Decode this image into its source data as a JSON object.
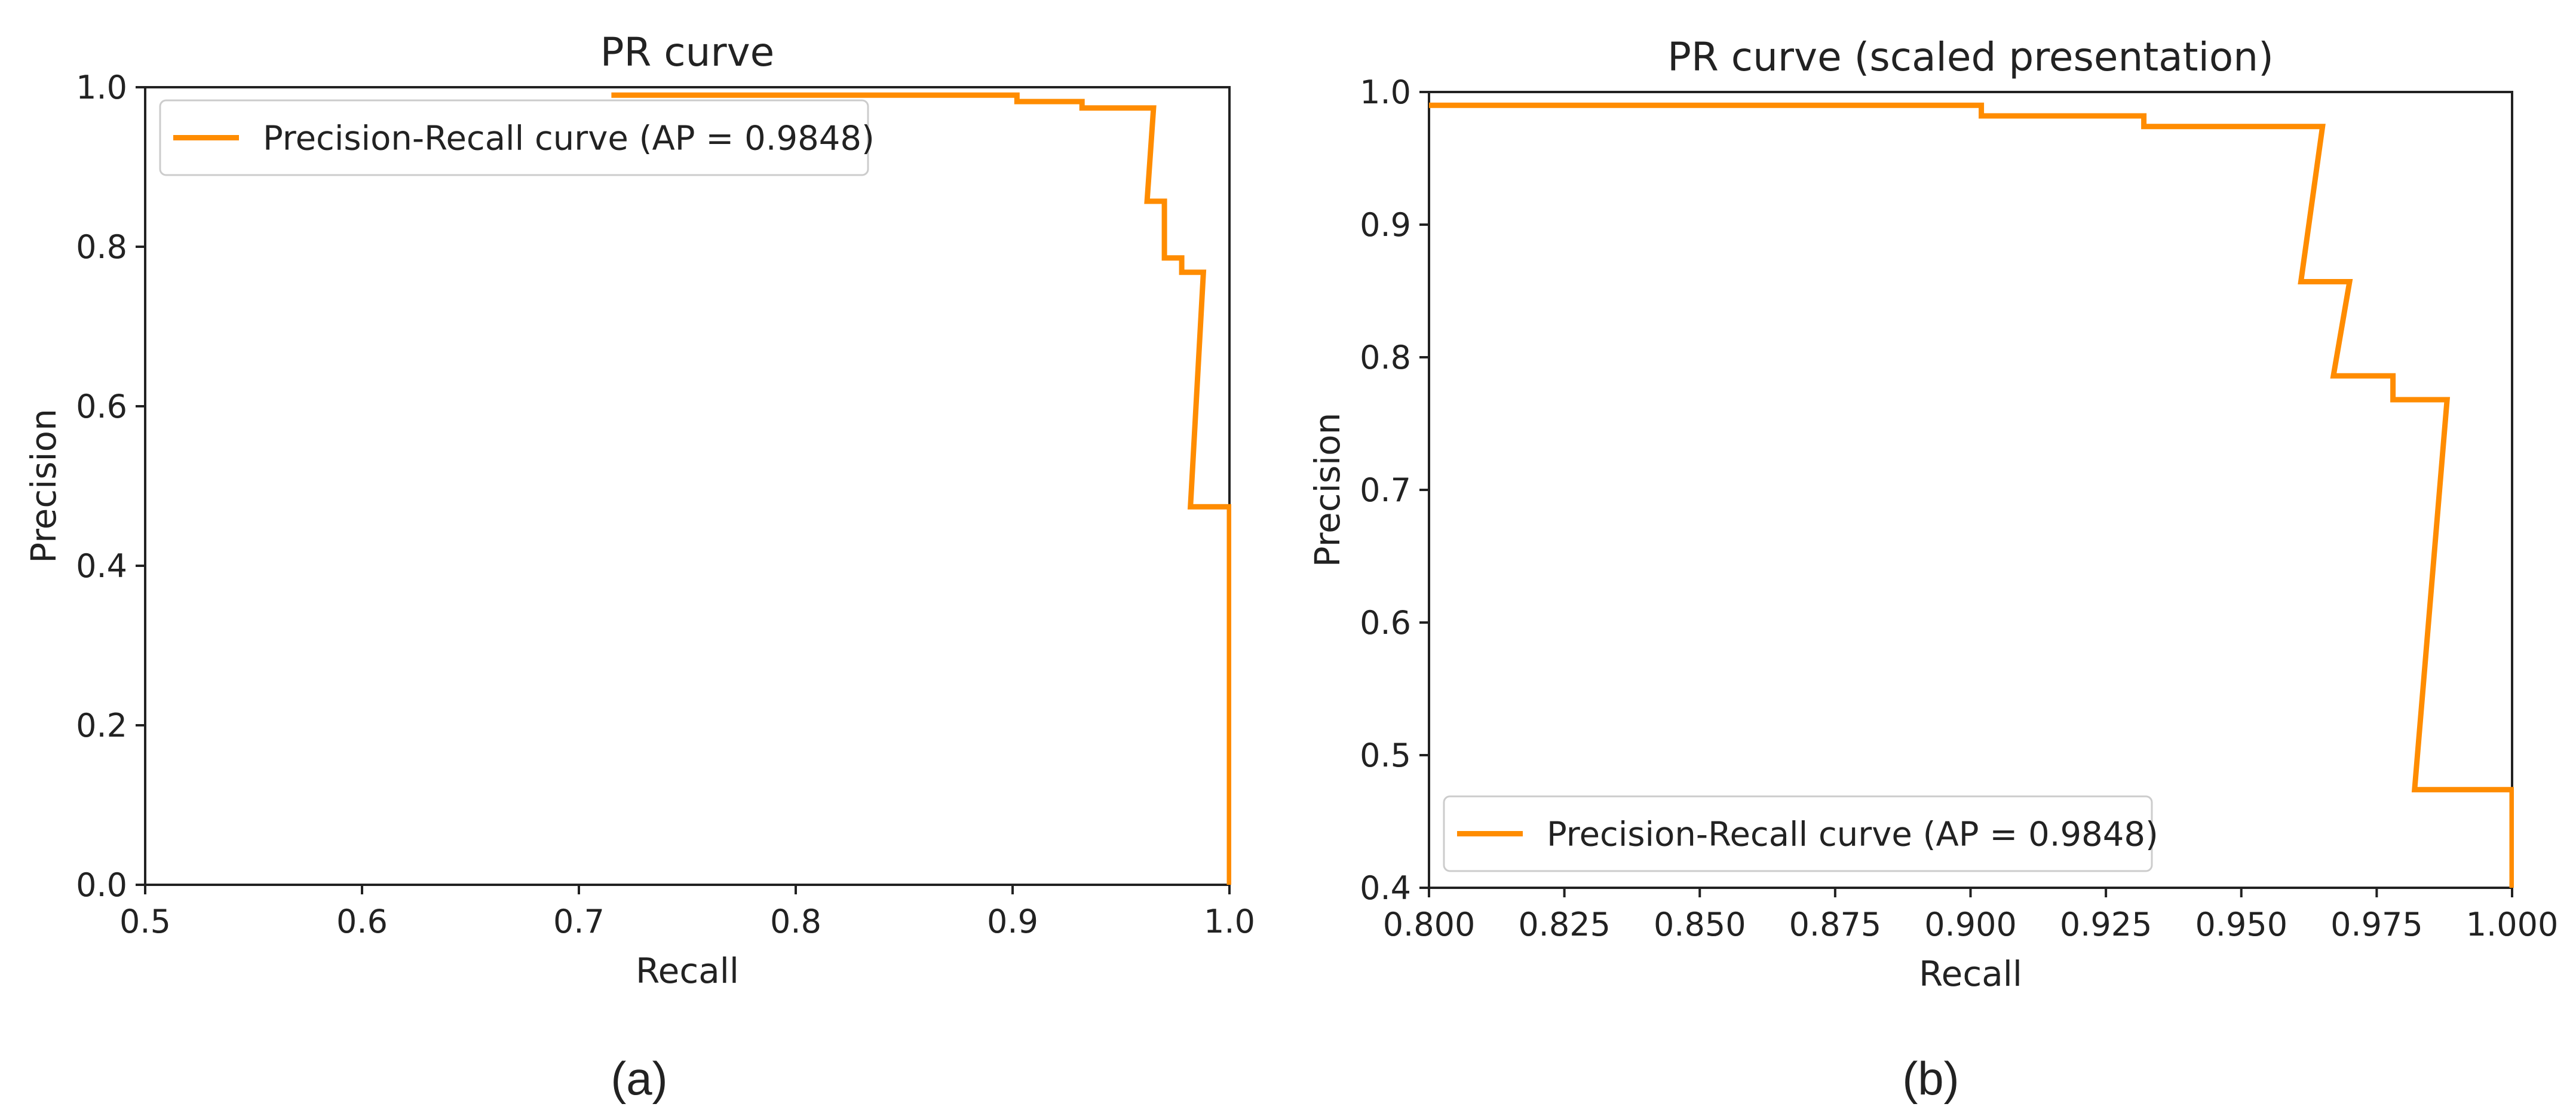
{
  "chart_data": [
    {
      "type": "line",
      "panel_label": "(a)",
      "title": "PR curve",
      "xlabel": "Recall",
      "ylabel": "Precision",
      "xlim": [
        0.5,
        1.0
      ],
      "ylim": [
        0.0,
        1.0
      ],
      "xticks": [
        0.5,
        0.6,
        0.7,
        0.8,
        0.9,
        1.0
      ],
      "xtick_labels": [
        "0.5",
        "0.6",
        "0.7",
        "0.8",
        "0.9",
        "1.0"
      ],
      "yticks": [
        0.0,
        0.2,
        0.4,
        0.6,
        0.8,
        1.0
      ],
      "ytick_labels": [
        "0.0",
        "0.2",
        "0.4",
        "0.6",
        "0.8",
        "1.0"
      ],
      "grid": false,
      "legend": {
        "location": "upper-left",
        "entries": [
          "Precision-Recall curve (AP = 0.9848)"
        ]
      },
      "series": [
        {
          "name": "Precision-Recall curve (AP = 0.9848)",
          "color": "#ff8c00",
          "x": [
            0.715,
            0.715,
            0.902,
            0.902,
            0.932,
            0.932,
            0.965,
            0.962,
            0.97,
            0.97,
            0.978,
            0.978,
            0.988,
            0.982,
            1.0,
            1.0
          ],
          "y": [
            0.99,
            0.99,
            0.99,
            0.982,
            0.982,
            0.974,
            0.974,
            0.857,
            0.857,
            0.786,
            0.786,
            0.768,
            0.768,
            0.474,
            0.474,
            0.0
          ]
        }
      ]
    },
    {
      "type": "line",
      "panel_label": "(b)",
      "title": "PR curve (scaled presentation)",
      "xlabel": "Recall",
      "ylabel": "Precision",
      "xlim": [
        0.8,
        1.0
      ],
      "ylim": [
        0.4,
        1.0
      ],
      "xticks": [
        0.8,
        0.825,
        0.85,
        0.875,
        0.9,
        0.925,
        0.95,
        0.975,
        1.0
      ],
      "xtick_labels": [
        "0.800",
        "0.825",
        "0.850",
        "0.875",
        "0.900",
        "0.925",
        "0.950",
        "0.975",
        "1.000"
      ],
      "yticks": [
        0.4,
        0.5,
        0.6,
        0.7,
        0.8,
        0.9,
        1.0
      ],
      "ytick_labels": [
        "0.4",
        "0.5",
        "0.6",
        "0.7",
        "0.8",
        "0.9",
        "1.0"
      ],
      "grid": false,
      "legend": {
        "location": "lower-left",
        "entries": [
          "Precision-Recall curve (AP = 0.9848)"
        ]
      },
      "series": [
        {
          "name": "Precision-Recall curve (AP = 0.9848)",
          "color": "#ff8c00",
          "x": [
            0.8,
            0.902,
            0.902,
            0.932,
            0.932,
            0.965,
            0.961,
            0.97,
            0.967,
            0.978,
            0.978,
            0.988,
            0.982,
            1.0,
            1.0
          ],
          "y": [
            0.99,
            0.99,
            0.982,
            0.982,
            0.974,
            0.974,
            0.857,
            0.857,
            0.786,
            0.786,
            0.768,
            0.768,
            0.474,
            0.474,
            0.4
          ]
        }
      ]
    }
  ]
}
